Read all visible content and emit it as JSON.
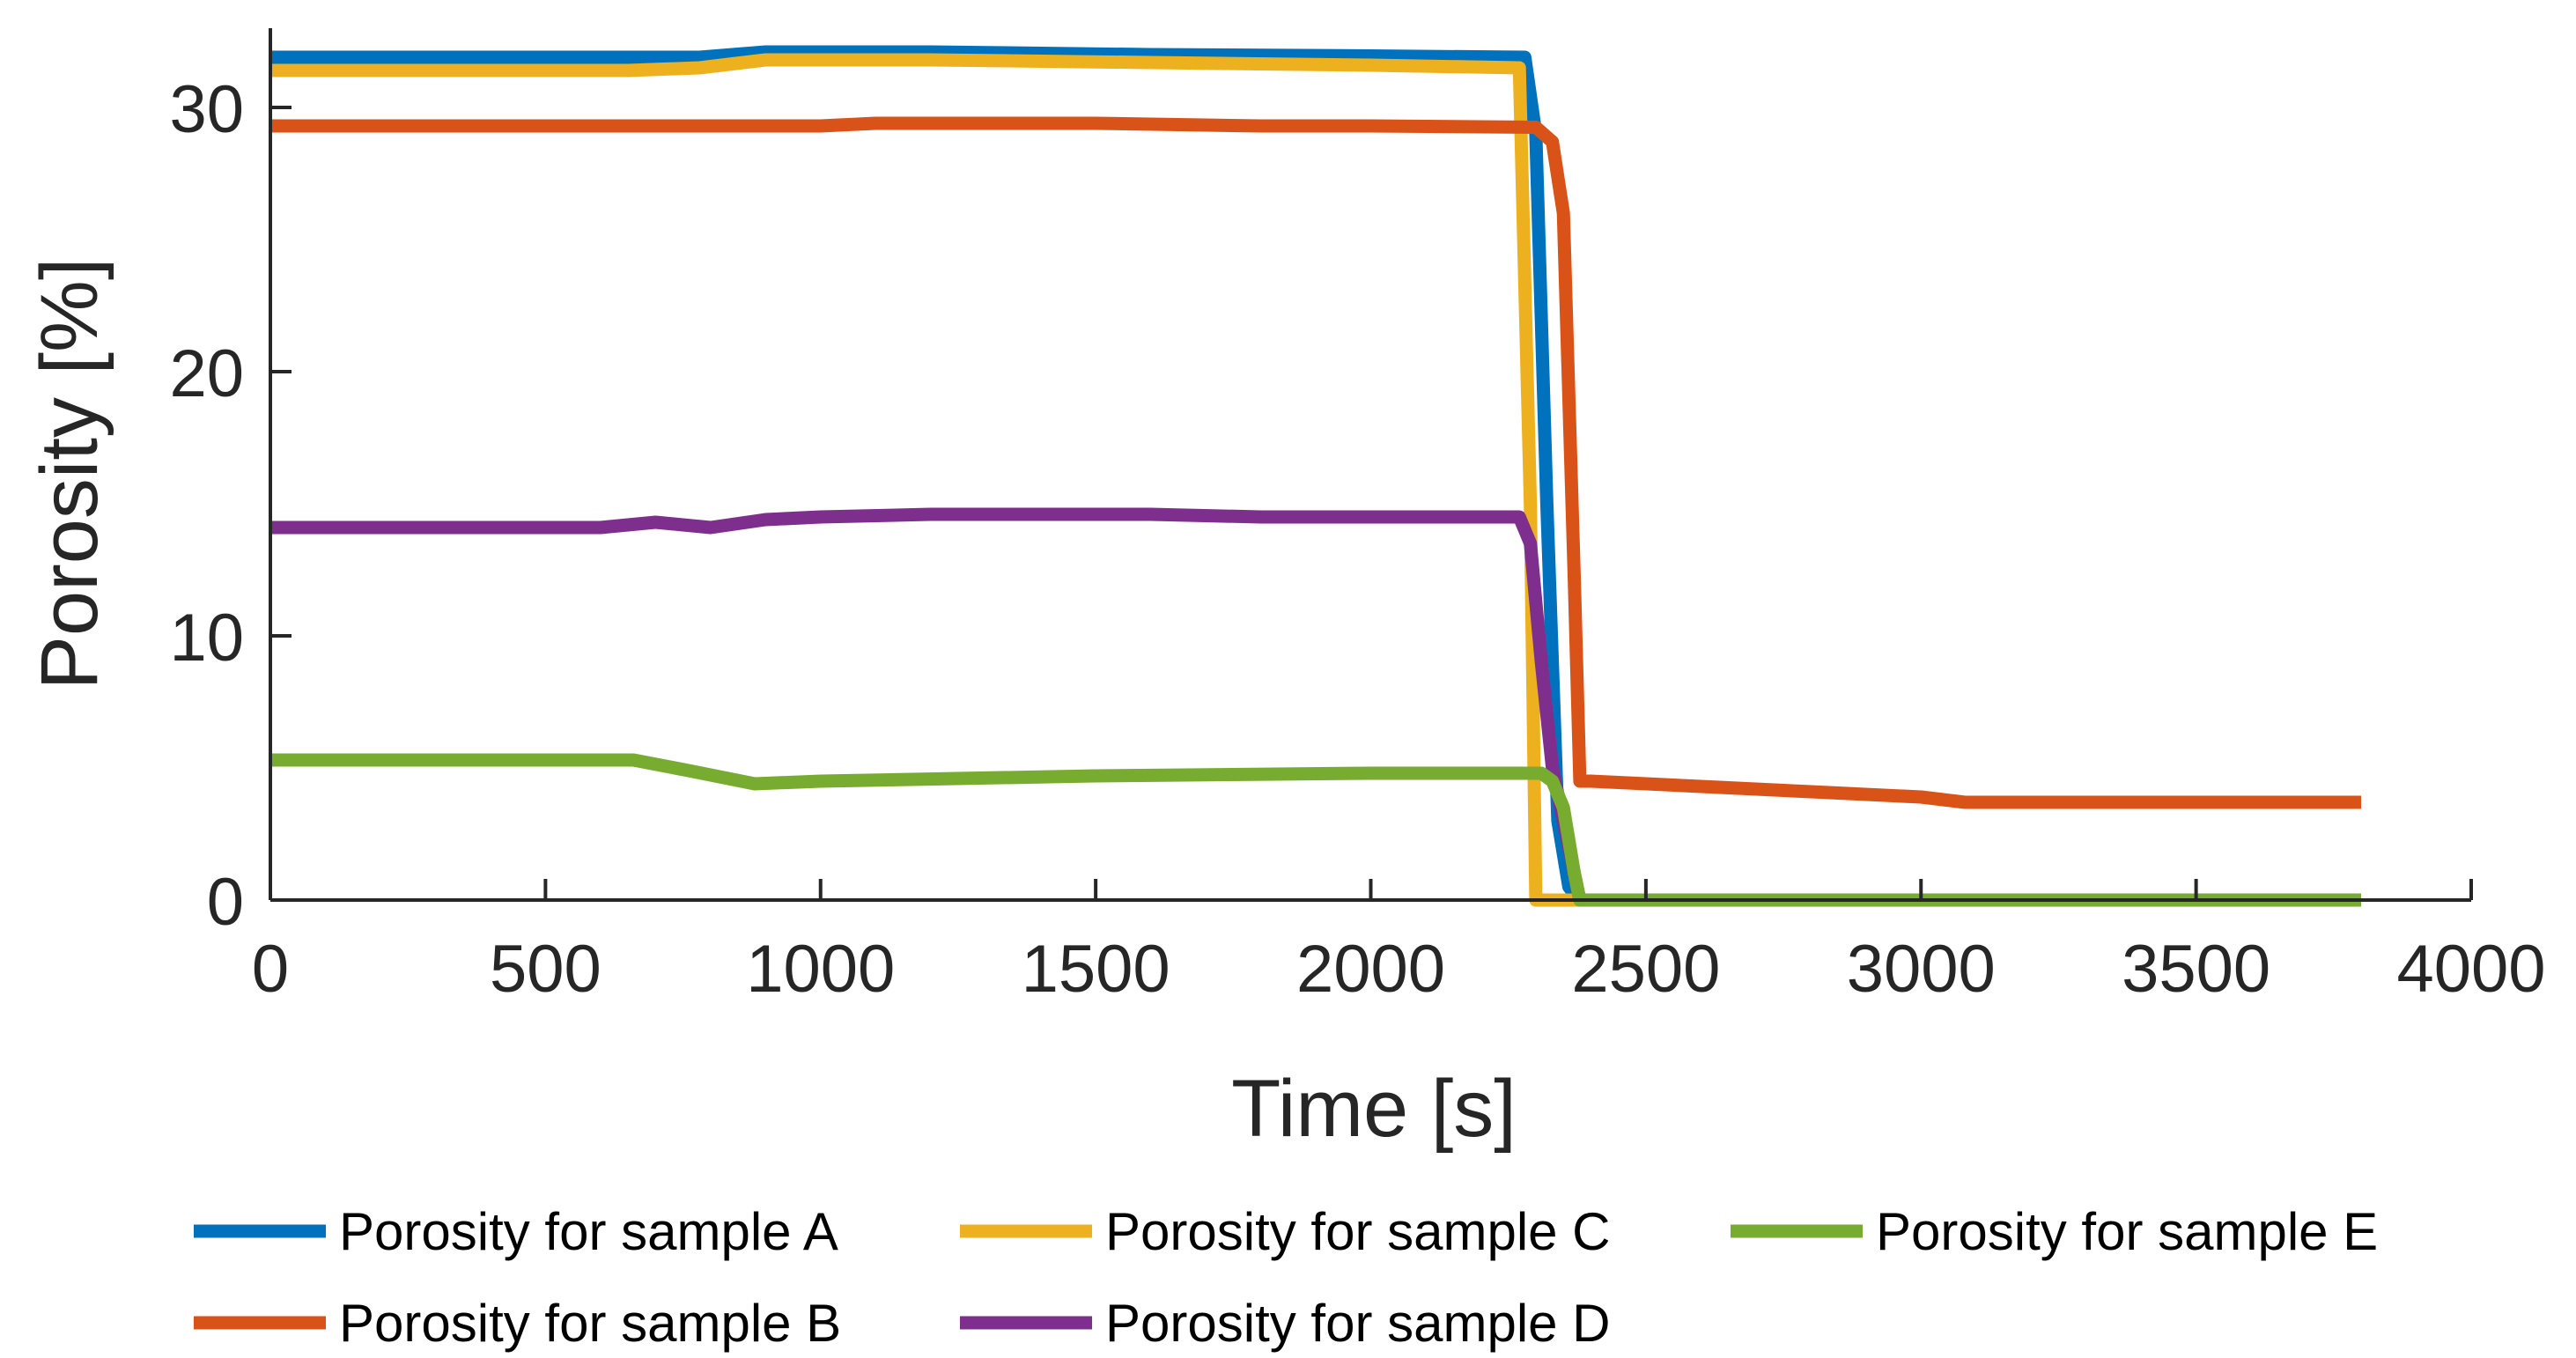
{
  "chart_data": {
    "type": "line",
    "title": "",
    "xlabel": "Time [s]",
    "ylabel": "Porosity [%]",
    "xlim": [
      0,
      4000
    ],
    "ylim": [
      0,
      33
    ],
    "xticks": [
      0,
      500,
      1000,
      1500,
      2000,
      2500,
      3000,
      3500,
      4000
    ],
    "yticks": [
      0,
      10,
      20,
      30
    ],
    "grid": false,
    "legend_position": "bottom",
    "series": [
      {
        "name": "Porosity for sample A",
        "color": "#0072BD",
        "x": [
          0,
          650,
          780,
          900,
          1200,
          1600,
          2000,
          2280,
          2300,
          2320,
          2340,
          2360,
          2380
        ],
        "y": [
          31.9,
          31.9,
          31.9,
          32.1,
          32.1,
          32.0,
          31.95,
          31.9,
          29,
          15,
          3,
          0.5,
          0
        ]
      },
      {
        "name": "Porosity for sample B",
        "color": "#D95319",
        "x": [
          0,
          1000,
          1100,
          1500,
          1800,
          2000,
          2300,
          2330,
          2350,
          2370,
          2380,
          2400,
          2600,
          2800,
          3000,
          3080,
          3500,
          3800
        ],
        "y": [
          29.3,
          29.3,
          29.4,
          29.4,
          29.3,
          29.3,
          29.25,
          28.7,
          26,
          12,
          4.5,
          4.5,
          4.3,
          4.1,
          3.9,
          3.7,
          3.7,
          3.7
        ]
      },
      {
        "name": "Porosity for sample C",
        "color": "#EDB120",
        "x": [
          0,
          650,
          780,
          900,
          1200,
          1600,
          2000,
          2270,
          2290,
          2300,
          2320,
          2380
        ],
        "y": [
          31.4,
          31.4,
          31.5,
          31.8,
          31.8,
          31.7,
          31.6,
          31.5,
          15,
          0,
          0,
          0
        ]
      },
      {
        "name": "Porosity for sample D",
        "color": "#7E2F8E",
        "x": [
          0,
          600,
          700,
          800,
          900,
          1000,
          1200,
          1600,
          1800,
          2000,
          2270,
          2290,
          2310,
          2330,
          2350,
          2370,
          2380
        ],
        "y": [
          14.1,
          14.1,
          14.3,
          14.1,
          14.4,
          14.5,
          14.6,
          14.6,
          14.5,
          14.5,
          14.5,
          13.5,
          9,
          5,
          3,
          1,
          0
        ]
      },
      {
        "name": "Porosity for sample E",
        "color": "#77AC30",
        "x": [
          0,
          660,
          760,
          880,
          1000,
          1500,
          2000,
          2280,
          2310,
          2330,
          2350,
          2370,
          2380,
          3000,
          3800
        ],
        "y": [
          5.3,
          5.3,
          4.9,
          4.4,
          4.5,
          4.7,
          4.8,
          4.8,
          4.8,
          4.5,
          3.5,
          1,
          0,
          0,
          0
        ]
      }
    ]
  }
}
